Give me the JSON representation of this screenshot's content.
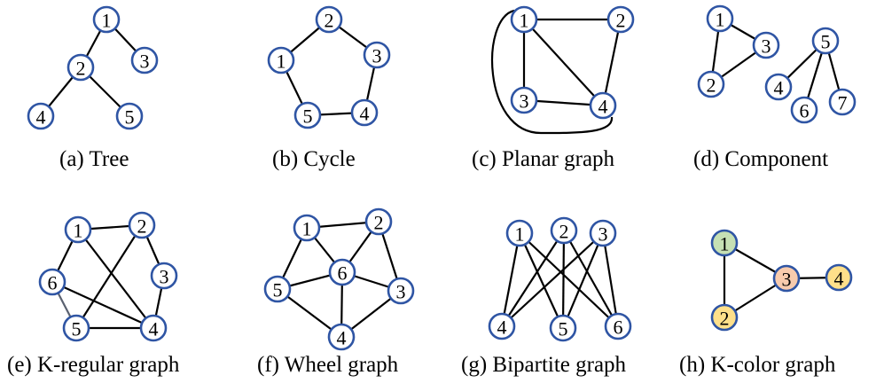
{
  "figure": {
    "panels": [
      {
        "id": "tree",
        "caption": "(a) Tree",
        "nodes": [
          {
            "label": "1",
            "fill": "#ffffff"
          },
          {
            "label": "2",
            "fill": "#ffffff"
          },
          {
            "label": "3",
            "fill": "#ffffff"
          },
          {
            "label": "4",
            "fill": "#ffffff"
          },
          {
            "label": "5",
            "fill": "#ffffff"
          }
        ],
        "edges": [
          [
            "1",
            "2"
          ],
          [
            "1",
            "3"
          ],
          [
            "2",
            "4"
          ],
          [
            "2",
            "5"
          ]
        ]
      },
      {
        "id": "cycle",
        "caption": "(b) Cycle",
        "nodes": [
          {
            "label": "1",
            "fill": "#ffffff"
          },
          {
            "label": "2",
            "fill": "#ffffff"
          },
          {
            "label": "3",
            "fill": "#ffffff"
          },
          {
            "label": "4",
            "fill": "#ffffff"
          },
          {
            "label": "5",
            "fill": "#ffffff"
          }
        ],
        "edges": [
          [
            "1",
            "2"
          ],
          [
            "2",
            "3"
          ],
          [
            "3",
            "4"
          ],
          [
            "4",
            "5"
          ],
          [
            "5",
            "1"
          ]
        ]
      },
      {
        "id": "planar",
        "caption": "(c) Planar graph",
        "nodes": [
          {
            "label": "1",
            "fill": "#ffffff"
          },
          {
            "label": "2",
            "fill": "#ffffff"
          },
          {
            "label": "3",
            "fill": "#ffffff"
          },
          {
            "label": "4",
            "fill": "#ffffff"
          }
        ],
        "edges": [
          [
            "1",
            "2"
          ],
          [
            "1",
            "3"
          ],
          [
            "1",
            "4"
          ],
          [
            "2",
            "4"
          ],
          [
            "3",
            "4"
          ],
          [
            "1",
            "4"
          ]
        ]
      },
      {
        "id": "component",
        "caption": "(d) Component",
        "nodes": [
          {
            "label": "1",
            "fill": "#ffffff"
          },
          {
            "label": "2",
            "fill": "#ffffff"
          },
          {
            "label": "3",
            "fill": "#ffffff"
          },
          {
            "label": "4",
            "fill": "#ffffff"
          },
          {
            "label": "5",
            "fill": "#ffffff"
          },
          {
            "label": "6",
            "fill": "#ffffff"
          },
          {
            "label": "7",
            "fill": "#ffffff"
          }
        ],
        "edges": [
          [
            "1",
            "2"
          ],
          [
            "1",
            "3"
          ],
          [
            "2",
            "3"
          ],
          [
            "5",
            "4"
          ],
          [
            "5",
            "6"
          ],
          [
            "5",
            "7"
          ]
        ]
      },
      {
        "id": "kregular",
        "caption": "(e) K-regular graph",
        "nodes": [
          {
            "label": "1",
            "fill": "#ffffff"
          },
          {
            "label": "2",
            "fill": "#ffffff"
          },
          {
            "label": "3",
            "fill": "#ffffff"
          },
          {
            "label": "4",
            "fill": "#ffffff"
          },
          {
            "label": "5",
            "fill": "#ffffff"
          },
          {
            "label": "6",
            "fill": "#ffffff"
          }
        ],
        "edges": [
          [
            "1",
            "2"
          ],
          [
            "1",
            "6"
          ],
          [
            "1",
            "4"
          ],
          [
            "2",
            "3"
          ],
          [
            "2",
            "5"
          ],
          [
            "3",
            "4"
          ],
          [
            "4",
            "5"
          ],
          [
            "5",
            "6"
          ],
          [
            "6",
            "4"
          ]
        ]
      },
      {
        "id": "wheel",
        "caption": "(f) Wheel graph",
        "nodes": [
          {
            "label": "1",
            "fill": "#ffffff"
          },
          {
            "label": "2",
            "fill": "#ffffff"
          },
          {
            "label": "3",
            "fill": "#ffffff"
          },
          {
            "label": "4",
            "fill": "#ffffff"
          },
          {
            "label": "5",
            "fill": "#ffffff"
          },
          {
            "label": "6",
            "fill": "#ffffff"
          }
        ],
        "edges": [
          [
            "1",
            "2"
          ],
          [
            "2",
            "3"
          ],
          [
            "3",
            "4"
          ],
          [
            "4",
            "5"
          ],
          [
            "5",
            "1"
          ],
          [
            "6",
            "1"
          ],
          [
            "6",
            "2"
          ],
          [
            "6",
            "3"
          ],
          [
            "6",
            "4"
          ],
          [
            "6",
            "5"
          ]
        ]
      },
      {
        "id": "bipartite",
        "caption": "(g) Bipartite graph",
        "nodes": [
          {
            "label": "1",
            "fill": "#ffffff"
          },
          {
            "label": "2",
            "fill": "#ffffff"
          },
          {
            "label": "3",
            "fill": "#ffffff"
          },
          {
            "label": "4",
            "fill": "#ffffff"
          },
          {
            "label": "5",
            "fill": "#ffffff"
          },
          {
            "label": "6",
            "fill": "#ffffff"
          }
        ],
        "edges": [
          [
            "1",
            "4"
          ],
          [
            "1",
            "5"
          ],
          [
            "1",
            "6"
          ],
          [
            "2",
            "4"
          ],
          [
            "2",
            "5"
          ],
          [
            "2",
            "6"
          ],
          [
            "3",
            "4"
          ],
          [
            "3",
            "5"
          ],
          [
            "3",
            "6"
          ]
        ]
      },
      {
        "id": "kcolor",
        "caption": "(h) K-color graph",
        "nodes": [
          {
            "label": "1",
            "fill": "#c6e0b4"
          },
          {
            "label": "2",
            "fill": "#ffe08a"
          },
          {
            "label": "3",
            "fill": "#f8cbad"
          },
          {
            "label": "4",
            "fill": "#ffe08a"
          }
        ],
        "edges": [
          [
            "1",
            "2"
          ],
          [
            "1",
            "3"
          ],
          [
            "2",
            "3"
          ],
          [
            "3",
            "4"
          ]
        ]
      }
    ]
  }
}
